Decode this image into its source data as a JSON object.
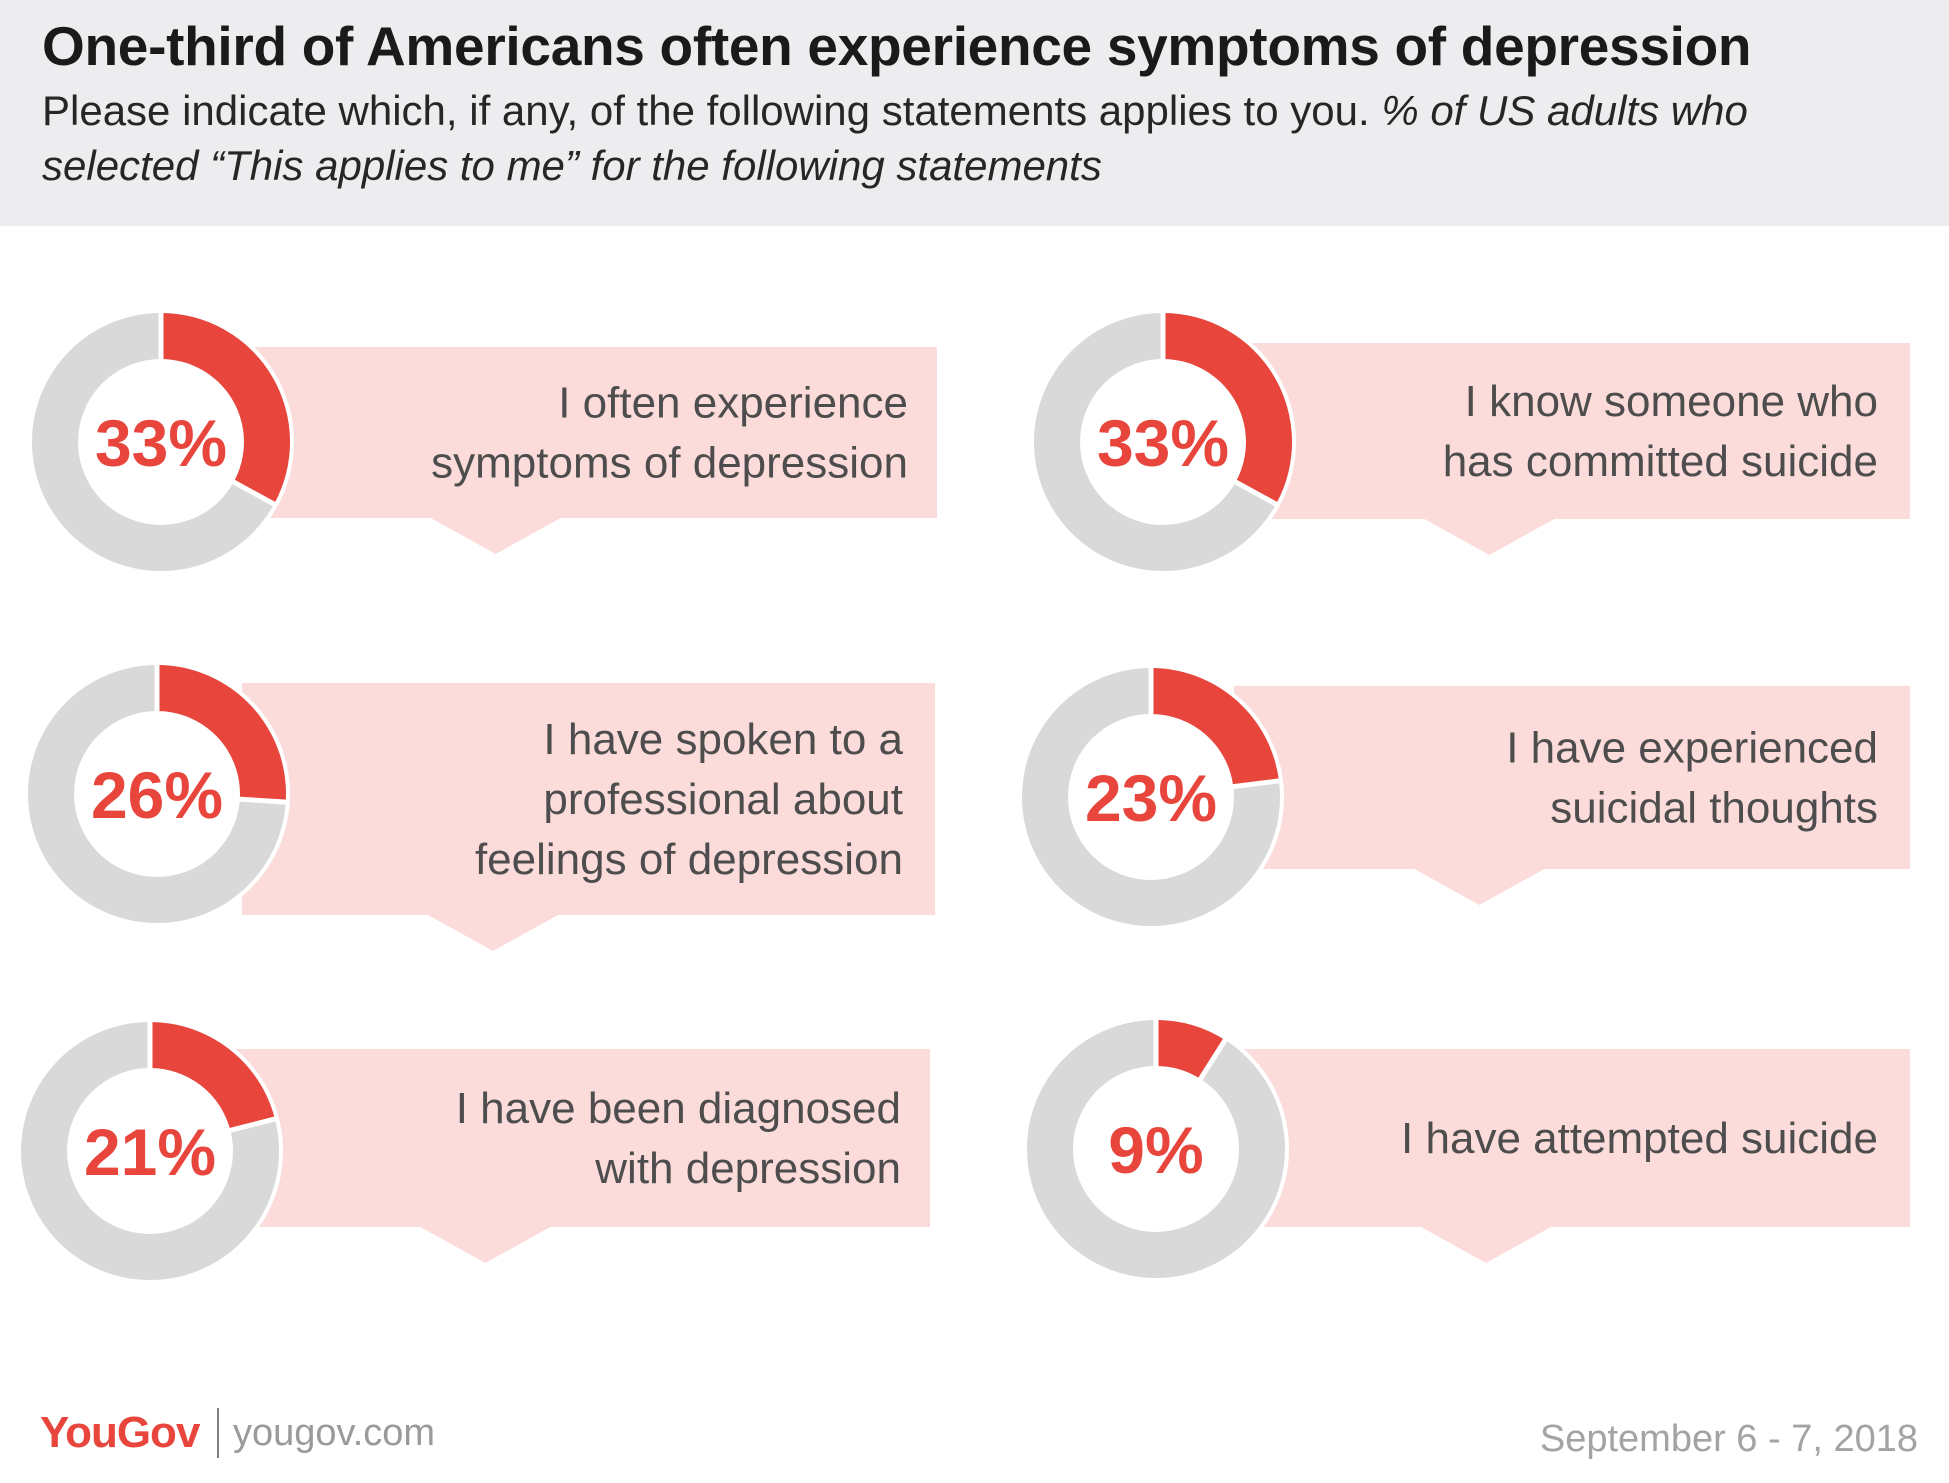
{
  "header": {
    "title": "One-third of Americans often experience symptoms of depression",
    "subtitle_plain": "Please indicate which, if any, of the following statements applies to you. ",
    "subtitle_italic": "% of US adults who selected “This applies to me” for the following statements"
  },
  "colors": {
    "accent": "#e8453c",
    "ring_background": "#d9d9d9",
    "callout_background": "#fcdcdb",
    "header_background": "#ededf0"
  },
  "chart_data": {
    "type": "pie",
    "style": "donut",
    "series": [
      {
        "label": "33%",
        "value": 33,
        "statement": [
          "I often experience",
          "symptoms of depression"
        ]
      },
      {
        "label": "33%",
        "value": 33,
        "statement": [
          "I know someone who",
          "has committed suicide"
        ]
      },
      {
        "label": "26%",
        "value": 26,
        "statement": [
          "I have spoken to a",
          "professional about",
          "feelings of depression"
        ]
      },
      {
        "label": "23%",
        "value": 23,
        "statement": [
          "I have experienced",
          "suicidal thoughts"
        ]
      },
      {
        "label": "21%",
        "value": 21,
        "statement": [
          "I have been diagnosed",
          "with depression"
        ]
      },
      {
        "label": "9%",
        "value": 9,
        "statement": [
          "I have attempted suicide"
        ]
      }
    ]
  },
  "footer": {
    "logo": "YouGov",
    "site": "yougov.com",
    "date": "September 6 - 7, 2018"
  }
}
